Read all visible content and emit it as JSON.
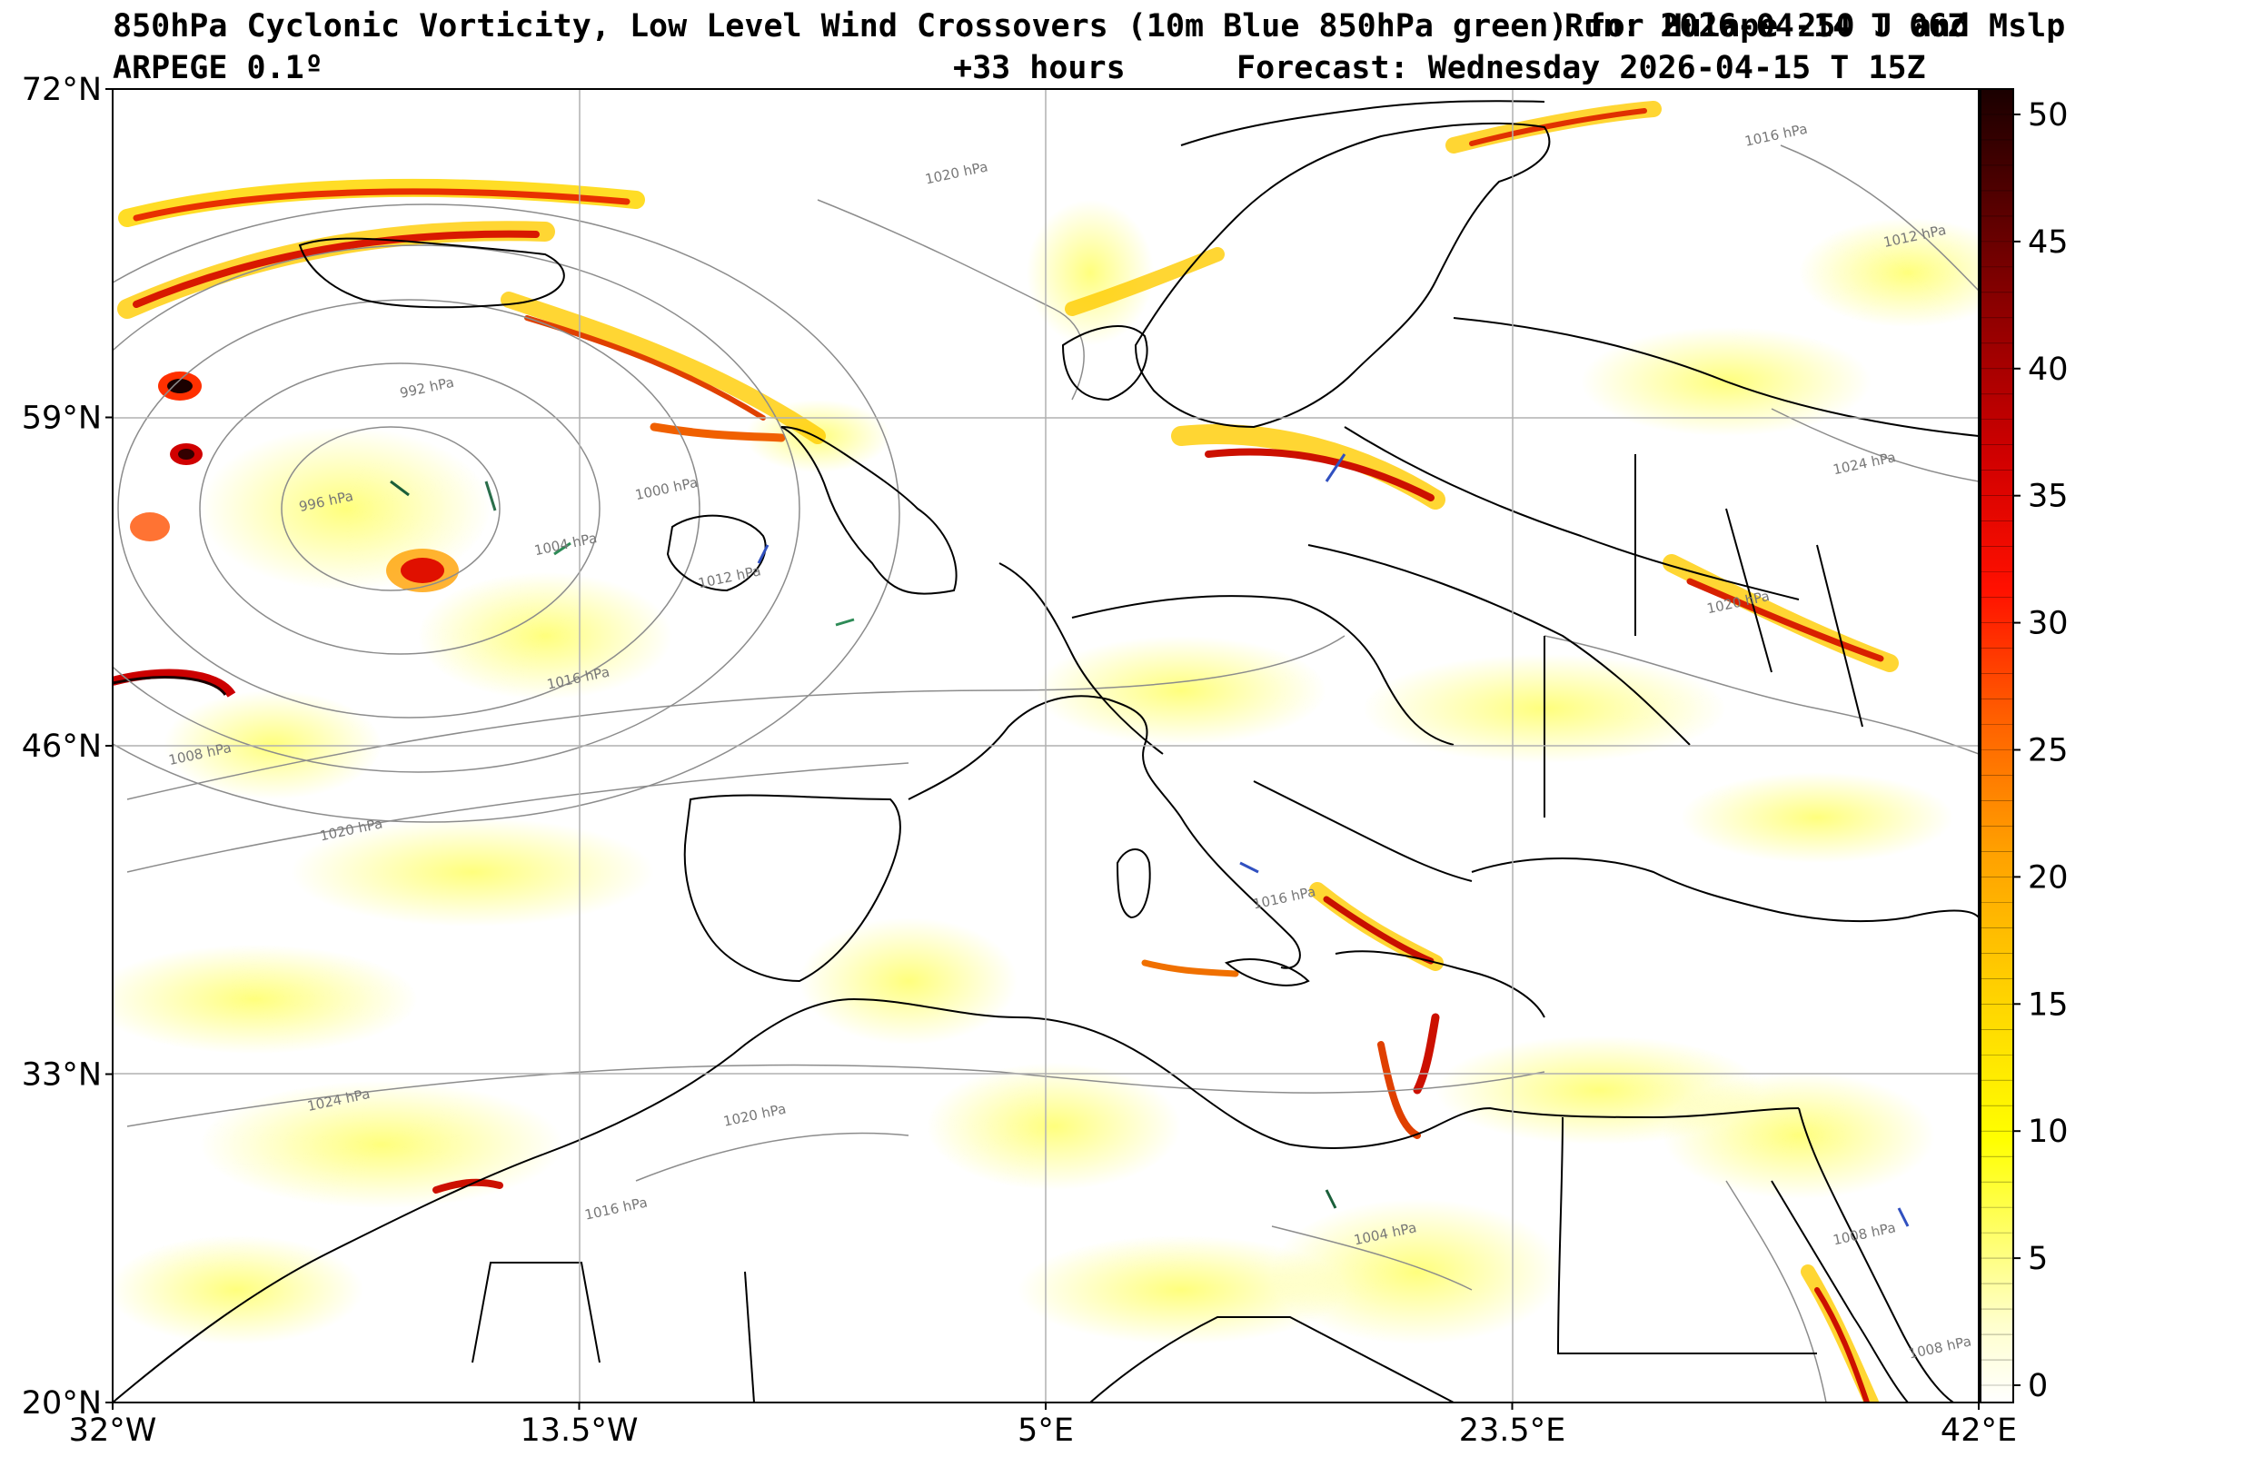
{
  "header": {
    "title_line1": "850hPa Cyclonic Vorticity, Low Level Wind Crossovers (10m Blue 850hPa green) for Hulape 250 J and Mslp",
    "run_text": "Run: 2026-04-14 T 06Z",
    "model": "ARPEGE 0.1º",
    "lead_time": "+33 hours",
    "forecast": "Forecast: Wednesday 2026-04-15 T 15Z"
  },
  "map": {
    "lon_range": [
      -32,
      42
    ],
    "lat_range": [
      20,
      72
    ],
    "lat_ticks": [
      {
        "value": 72,
        "label": "72°N"
      },
      {
        "value": 59,
        "label": "59°N"
      },
      {
        "value": 46,
        "label": "46°N"
      },
      {
        "value": 33,
        "label": "33°N"
      },
      {
        "value": 20,
        "label": "20°N"
      }
    ],
    "lon_ticks": [
      {
        "value": -32,
        "label": "32°W"
      },
      {
        "value": -13.5,
        "label": "13.5°W"
      },
      {
        "value": 5,
        "label": "5°E"
      },
      {
        "value": 23.5,
        "label": "23.5°E"
      },
      {
        "value": 42,
        "label": "42°E"
      }
    ],
    "isobar_labels": [
      {
        "text": "1020 hPa",
        "lon": 1.5,
        "lat": 68.5
      },
      {
        "text": "992 hPa",
        "lon": -19.5,
        "lat": 60
      },
      {
        "text": "996 hPa",
        "lon": -23.5,
        "lat": 55.5
      },
      {
        "text": "1000 hPa",
        "lon": -10,
        "lat": 56
      },
      {
        "text": "1004 hPa",
        "lon": -14,
        "lat": 53.8
      },
      {
        "text": "1012 hPa",
        "lon": -7.5,
        "lat": 52.5
      },
      {
        "text": "1016 hPa",
        "lon": -13.5,
        "lat": 48.5
      },
      {
        "text": "1008 hPa",
        "lon": -28.5,
        "lat": 45.5
      },
      {
        "text": "1020 hPa",
        "lon": -22.5,
        "lat": 42.5
      },
      {
        "text": "1024 hPa",
        "lon": -23,
        "lat": 31.8
      },
      {
        "text": "1020 hPa",
        "lon": -6.5,
        "lat": 31.2
      },
      {
        "text": "1016 hPa",
        "lon": -12,
        "lat": 27.5
      },
      {
        "text": "1004 hPa",
        "lon": 18.5,
        "lat": 26.5
      },
      {
        "text": "1020 hPa",
        "lon": 32.5,
        "lat": 51.5
      },
      {
        "text": "1024 hPa",
        "lon": 37.5,
        "lat": 57
      },
      {
        "text": "1012 hPa",
        "lon": 39.5,
        "lat": 66
      },
      {
        "text": "1016 hPa",
        "lon": 34,
        "lat": 70
      },
      {
        "text": "1008 hPa",
        "lon": 37.5,
        "lat": 26.5
      },
      {
        "text": "1008 hPa",
        "lon": 40.5,
        "lat": 22
      },
      {
        "text": "1016 hPa",
        "lon": 14.5,
        "lat": 39.8
      }
    ]
  },
  "colorbar": {
    "min": 0,
    "max": 51,
    "tick_labels": [
      "0",
      "5",
      "10",
      "15",
      "20",
      "25",
      "30",
      "35",
      "40",
      "45",
      "50"
    ],
    "colors": [
      "#ffffff",
      "#ffff99",
      "#ffff00",
      "#ffd700",
      "#ffa500",
      "#ff6600",
      "#ff0000",
      "#cc0000",
      "#880000",
      "#330000"
    ]
  }
}
